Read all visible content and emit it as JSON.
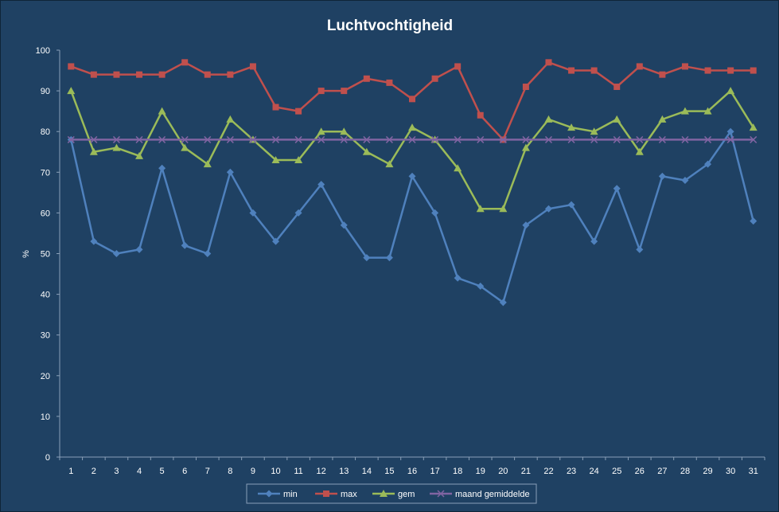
{
  "chart_data": {
    "type": "line",
    "title": "Luchtvochtigheid",
    "ylabel": "%",
    "xlabel": "",
    "ylim": [
      0,
      100
    ],
    "ytick_step": 10,
    "grid": false,
    "legend_position": "bottom",
    "categories": [
      "1",
      "2",
      "3",
      "4",
      "5",
      "6",
      "7",
      "8",
      "9",
      "10",
      "11",
      "12",
      "13",
      "14",
      "15",
      "16",
      "17",
      "18",
      "19",
      "20",
      "21",
      "22",
      "23",
      "24",
      "25",
      "26",
      "27",
      "28",
      "29",
      "30",
      "31"
    ],
    "series": [
      {
        "name": "min",
        "color": "#4f81bd",
        "marker": "diamond",
        "values": [
          78,
          53,
          50,
          51,
          71,
          52,
          50,
          70,
          60,
          53,
          60,
          67,
          57,
          49,
          49,
          69,
          60,
          44,
          42,
          38,
          57,
          61,
          62,
          53,
          66,
          51,
          69,
          68,
          72,
          80,
          58
        ]
      },
      {
        "name": "max",
        "color": "#c0504d",
        "marker": "square",
        "values": [
          96,
          94,
          94,
          94,
          94,
          97,
          94,
          94,
          96,
          86,
          85,
          90,
          90,
          93,
          92,
          88,
          93,
          96,
          84,
          78,
          91,
          97,
          95,
          95,
          91,
          96,
          94,
          96,
          95,
          95,
          95
        ]
      },
      {
        "name": "gem",
        "color": "#9bbb59",
        "marker": "triangle",
        "values": [
          90,
          75,
          76,
          74,
          85,
          76,
          72,
          83,
          78,
          73,
          73,
          80,
          80,
          75,
          72,
          81,
          78,
          71,
          61,
          61,
          76,
          83,
          81,
          80,
          83,
          75,
          83,
          85,
          85,
          90,
          81
        ]
      },
      {
        "name": "maand gemiddelde",
        "color": "#8064a2",
        "marker": "x",
        "values": [
          78,
          78,
          78,
          78,
          78,
          78,
          78,
          78,
          78,
          78,
          78,
          78,
          78,
          78,
          78,
          78,
          78,
          78,
          78,
          78,
          78,
          78,
          78,
          78,
          78,
          78,
          78,
          78,
          78,
          78,
          78
        ]
      }
    ]
  }
}
